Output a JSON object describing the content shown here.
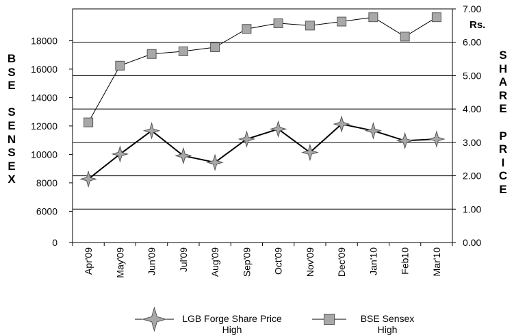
{
  "chart_data": {
    "type": "line",
    "categories": [
      "Apr'09",
      "May'09",
      "Jun'09",
      "Jul'09",
      "Aug'09",
      "Sep'09",
      "Oct'09",
      "Nov'09",
      "Dec'09",
      "Jan'10",
      "Feb10",
      "Mar'10"
    ],
    "left_axis": {
      "title": "B\nS\nE\n\nS\nE\nN\nS\nE\nX",
      "ylim": [
        0,
        18000
      ],
      "ticks": [
        0,
        6000,
        8000,
        10000,
        12000,
        14000,
        16000,
        18000
      ],
      "tick_labels": [
        "0",
        "6000",
        "8000",
        "10000",
        "12000",
        "14000",
        "16000",
        "18000"
      ]
    },
    "right_axis": {
      "unit": "Rs.",
      "title": "S\nH\nA\nR\nE\n\nP\nR\nI\nC\nE",
      "ylim": [
        0,
        7
      ],
      "ticks": [
        0,
        1,
        2,
        3,
        4,
        5,
        6,
        7
      ],
      "tick_labels": [
        "0.00",
        "1.00",
        "2.00",
        "3.00",
        "4.00",
        "5.00",
        "6.00",
        "7.00"
      ]
    },
    "series": [
      {
        "name": "LGB Forge Share Price High",
        "axis": "right",
        "marker": "star4",
        "values": [
          1.9,
          2.65,
          3.35,
          2.6,
          2.4,
          3.1,
          3.4,
          2.7,
          3.55,
          3.35,
          3.05,
          3.1
        ]
      },
      {
        "name": "BSE Sensex High",
        "axis": "right",
        "marker": "square",
        "values": [
          3.6,
          5.3,
          5.65,
          5.73,
          5.85,
          6.4,
          6.57,
          6.5,
          6.62,
          6.75,
          6.17,
          6.75
        ]
      }
    ],
    "legend": {
      "position": "bottom",
      "items": [
        {
          "line1": "LGB Forge Share Price",
          "line2": "High",
          "marker": "star4"
        },
        {
          "line1": "BSE Sensex",
          "line2": "High",
          "marker": "square"
        }
      ]
    },
    "grid": true,
    "colors": {
      "line": "#000000",
      "marker_fill": "#a8a8a8",
      "marker_stroke": "#555555",
      "grid": "#000000",
      "background": "#ffffff"
    }
  }
}
